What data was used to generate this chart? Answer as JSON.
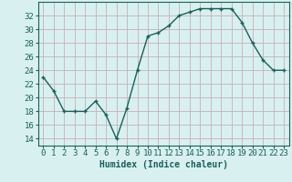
{
  "x": [
    0,
    1,
    2,
    3,
    4,
    5,
    6,
    7,
    8,
    9,
    10,
    11,
    12,
    13,
    14,
    15,
    16,
    17,
    18,
    19,
    20,
    21,
    22,
    23
  ],
  "y": [
    23,
    21,
    18,
    18,
    18,
    19.5,
    17.5,
    14,
    18.5,
    24,
    29,
    29.5,
    30.5,
    32,
    32.5,
    33,
    33,
    33,
    33,
    31,
    28,
    25.5,
    24,
    24
  ],
  "line_color": "#1a5f5a",
  "marker": "+",
  "bg_color": "#d8f0f0",
  "grid_color": "#c8b0b8",
  "xlabel": "Humidex (Indice chaleur)",
  "xlim": [
    -0.5,
    23.5
  ],
  "ylim": [
    13,
    34
  ],
  "yticks": [
    14,
    16,
    18,
    20,
    22,
    24,
    26,
    28,
    30,
    32
  ],
  "xticks": [
    0,
    1,
    2,
    3,
    4,
    5,
    6,
    7,
    8,
    9,
    10,
    11,
    12,
    13,
    14,
    15,
    16,
    17,
    18,
    19,
    20,
    21,
    22,
    23
  ],
  "xlabel_fontsize": 7,
  "tick_fontsize": 6.5,
  "linewidth": 1.0
}
